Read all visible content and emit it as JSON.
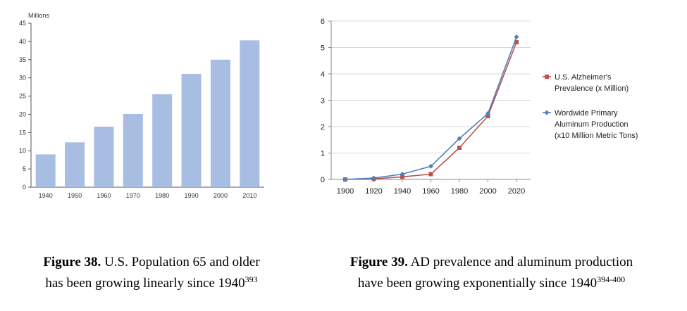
{
  "figures": [
    {
      "caption_label": "Figure 38.",
      "caption_line1": "U.S. Population 65 and older",
      "caption_line2": "has been growing linearly since 1940",
      "caption_ref": "393"
    },
    {
      "caption_label": "Figure 39.",
      "caption_line1": "AD prevalence and aluminum production",
      "caption_line2": "have been growing exponentially since 1940",
      "caption_ref": "394-400"
    }
  ],
  "chart_data": [
    {
      "type": "bar",
      "unit_label": "Millions",
      "categories": [
        "1940",
        "1950",
        "1960",
        "1970",
        "1980",
        "1990",
        "2000",
        "2010"
      ],
      "values": [
        9,
        12.3,
        16.6,
        20.1,
        25.5,
        31.1,
        35,
        40.3
      ],
      "ylim": [
        0,
        45
      ],
      "yticks": [
        0,
        5,
        10,
        15,
        20,
        25,
        30,
        35,
        40,
        45
      ],
      "grid": false,
      "colors": {
        "bar": "#a7bde1"
      }
    },
    {
      "type": "line",
      "x": [
        1900,
        1920,
        1940,
        1960,
        1980,
        2000,
        2020
      ],
      "xticks": [
        "1900",
        "1920",
        "1940",
        "1960",
        "1980",
        "2000",
        "2020"
      ],
      "ylim": [
        0,
        6
      ],
      "yticks": [
        0,
        1,
        2,
        3,
        4,
        5,
        6
      ],
      "grid": true,
      "legend_position": "right",
      "series": [
        {
          "name": "U.S. Alzheimer's Prevalence (x Million)",
          "legend_lines": [
            "U.S. Alzheimer's",
            "Prevalence (x Million)"
          ],
          "values": [
            0,
            0.02,
            0.1,
            0.2,
            1.2,
            2.4,
            5.2
          ],
          "color": "#c0504d",
          "marker": "square"
        },
        {
          "name": "Wordwide Primary Aluminum Production (x10 Million Metric Tons)",
          "legend_lines": [
            "Wordwide Primary",
            "Aluminum Production",
            "(x10 Million Metric Tons)"
          ],
          "values": [
            0,
            0.05,
            0.2,
            0.5,
            1.55,
            2.5,
            5.4
          ],
          "color": "#4f81bd",
          "marker": "diamond"
        }
      ]
    }
  ]
}
